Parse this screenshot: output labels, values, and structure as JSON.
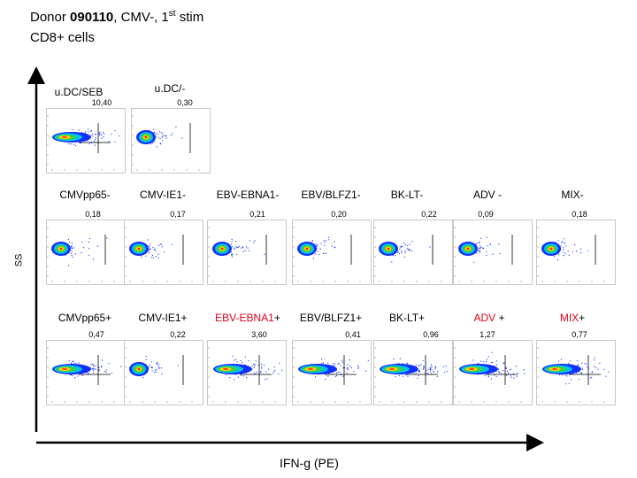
{
  "header": {
    "donor_prefix": "Donor ",
    "donor_id": "090110",
    "donor_suffix_pre": ", CMV-, 1",
    "ordinal": "st",
    "donor_suffix_post": " stim",
    "subtitle": "CD8+ cells"
  },
  "axes": {
    "y_label": "SS",
    "x_label": "IFN-g (PE)"
  },
  "controls": [
    {
      "label": "u.DC/SEB",
      "value": "10,40"
    },
    {
      "label": "u.DC/-",
      "value": "0,30"
    }
  ],
  "rows": [
    {
      "cells": [
        {
          "label": "CMVpp65-",
          "value": "0,18"
        },
        {
          "label": "CMV-IE1-",
          "value": "0,17"
        },
        {
          "label": "EBV-EBNA1-",
          "value": "0,21"
        },
        {
          "label": "EBV/BLFZ1-",
          "value": "0,20"
        },
        {
          "label": "BK-LT-",
          "value": "0,22"
        },
        {
          "label": "ADV -",
          "value": "0,09"
        },
        {
          "label": "MIX-",
          "value": "0,18"
        }
      ]
    },
    {
      "cells": [
        {
          "label": "CMVpp65+",
          "value": "0,47"
        },
        {
          "label": "CMV-IE1+",
          "value": "0,22"
        },
        {
          "label_red": "EBV-EBNA1",
          "label_black": "+",
          "value": "3,60"
        },
        {
          "label": "EBV/BLFZ1+",
          "value": "0,41"
        },
        {
          "label": "BK-LT+",
          "value": "0,96"
        },
        {
          "label_red": "ADV",
          "label_black": " +",
          "value": "1,27"
        },
        {
          "label_red": "MIX",
          "label_black": "+",
          "value": "0,77"
        }
      ]
    }
  ],
  "colors": {
    "red_label": "#e0001a",
    "dot_cool": "#1030ff",
    "dot_warm": "#ff2000"
  }
}
